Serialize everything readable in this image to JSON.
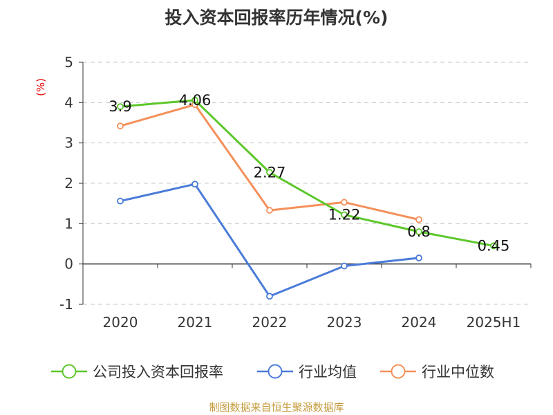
{
  "chart_data": {
    "type": "line",
    "title": "投入资本回报率历年情况(%)",
    "ylabel": "(%)",
    "categories": [
      "2020",
      "2021",
      "2022",
      "2023",
      "2024",
      "2025H1"
    ],
    "ylim": [
      -1,
      5
    ],
    "yticks": [
      -1,
      0,
      1,
      2,
      3,
      4,
      5
    ],
    "grid": true,
    "legend_position": "bottom",
    "series": [
      {
        "name": "公司投入资本回报率",
        "color": "#5cc72a",
        "values": [
          3.9,
          4.06,
          2.27,
          1.22,
          0.8,
          0.45
        ],
        "labels": [
          "3.9",
          "4.06",
          "2.27",
          "1.22",
          "0.8",
          "0.45"
        ]
      },
      {
        "name": "行业均值",
        "color": "#4a7bd8",
        "values": [
          1.56,
          1.98,
          -0.8,
          -0.05,
          0.15,
          null
        ]
      },
      {
        "name": "行业中位数",
        "color": "#f4905a",
        "values": [
          3.42,
          3.95,
          1.33,
          1.53,
          1.1,
          null
        ]
      }
    ]
  },
  "footer": {
    "source": "制图数据来自恒生聚源数据库"
  }
}
